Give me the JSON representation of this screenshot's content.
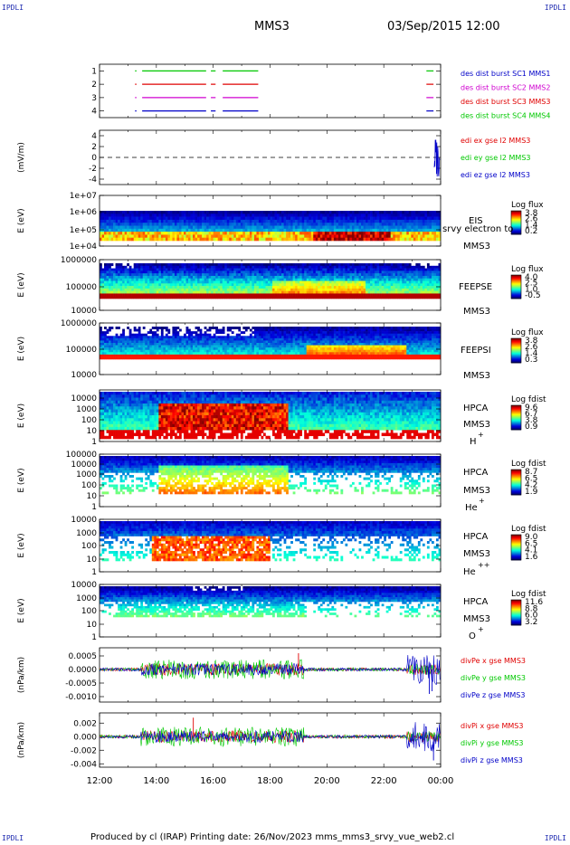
{
  "corner_labels": {
    "top_left": "IPDLI",
    "top_right": "IPDLI",
    "bottom_left": "IPDLI",
    "bottom_right": "IPDLI"
  },
  "header": {
    "spacecraft": "MMS3",
    "date_time": "03/Sep/2015 12:00"
  },
  "footer": {
    "text": "Produced by cl (IRAP)   Printing date: 26/Nov/2023   mms_mms3_srvy_vue_web2.cl"
  },
  "colors": {
    "red": "#e00000",
    "green": "#00c800",
    "blue": "#0000c8",
    "magenta": "#d000d0"
  },
  "x_axis": {
    "ticks": [
      "12:00",
      "14:00",
      "16:00",
      "18:00",
      "20:00",
      "22:00",
      "00:00"
    ]
  },
  "chart_data": [
    {
      "type": "line",
      "title": "",
      "ylabel": "",
      "yticks": [
        "1",
        "2",
        "3",
        "4"
      ],
      "ylim": [
        0.5,
        4.5
      ],
      "series": [
        {
          "name": "des dist burst SC1 MMS1",
          "color": "#0000c8",
          "y": 1,
          "segments": [
            [
              "13:15",
              "13:18"
            ],
            [
              "13:30",
              "15:45"
            ],
            [
              "15:55",
              "16:05"
            ],
            [
              "16:20",
              "17:35"
            ],
            [
              "23:30",
              "23:45"
            ]
          ]
        },
        {
          "name": "des dist burst SC2 MMS2",
          "color": "#d000d0",
          "y": 2,
          "segments": [
            [
              "13:15",
              "13:18"
            ],
            [
              "13:30",
              "15:45"
            ],
            [
              "15:55",
              "16:05"
            ],
            [
              "16:20",
              "17:35"
            ],
            [
              "23:30",
              "23:45"
            ]
          ]
        },
        {
          "name": "des dist burst SC3 MMS3",
          "color": "#e00000",
          "y": 3,
          "segments": [
            [
              "13:15",
              "13:18"
            ],
            [
              "13:30",
              "15:45"
            ],
            [
              "15:55",
              "16:05"
            ],
            [
              "16:20",
              "17:35"
            ],
            [
              "23:30",
              "23:45"
            ]
          ]
        },
        {
          "name": "des dist burst SC4 MMS4",
          "color": "#00c800",
          "y": 4,
          "segments": [
            [
              "13:15",
              "13:18"
            ],
            [
              "13:30",
              "15:45"
            ],
            [
              "15:55",
              "16:05"
            ],
            [
              "16:20",
              "17:35"
            ],
            [
              "23:30",
              "23:45"
            ]
          ]
        }
      ]
    },
    {
      "type": "line",
      "ylabel": "(mV/m)",
      "yticks": [
        "4",
        "2",
        "0",
        "-2",
        "-4"
      ],
      "ylim": [
        -5,
        5
      ],
      "series": [
        {
          "name": "edi ex gse l2 MMS3",
          "color": "#e00000"
        },
        {
          "name": "edi ey gse l2 MMS3",
          "color": "#00c800"
        },
        {
          "name": "edi ez gse l2 MMS3",
          "color": "#0000c8"
        }
      ]
    },
    {
      "type": "heatmap",
      "ylabel": "E (eV)",
      "yticks": [
        "1e+07",
        "1e+06",
        "1e+05",
        "1e+04"
      ],
      "labels": [
        "EIS",
        "srvy electron to",
        "MMS3"
      ],
      "colorbar": {
        "title": "Log flux",
        "ticks": [
          "3.8",
          "2.6",
          "1.4",
          "0.2"
        ]
      }
    },
    {
      "type": "heatmap",
      "ylabel": "E (eV)",
      "yticks": [
        "1000000",
        "100000",
        "10000"
      ],
      "labels": [
        "FEEPSE",
        "MMS3"
      ],
      "colorbar": {
        "title": "Log flux",
        "ticks": [
          "4.0",
          "2.5",
          "1.0",
          "-0.5"
        ]
      }
    },
    {
      "type": "heatmap",
      "ylabel": "E (eV)",
      "yticks": [
        "1000000",
        "100000",
        "10000"
      ],
      "labels": [
        "FEEPSI",
        "MMS3"
      ],
      "colorbar": {
        "title": "Log flux",
        "ticks": [
          "3.8",
          "2.6",
          "1.4",
          "0.3"
        ]
      }
    },
    {
      "type": "heatmap",
      "ylabel": "E (eV)",
      "yticks": [
        "10000",
        "1000",
        "100",
        "10",
        "1"
      ],
      "labels": [
        "HPCA",
        "MMS3",
        "H",
        "+"
      ],
      "colorbar": {
        "title": "Log fdist",
        "ticks": [
          "9.6",
          "6.7",
          "3.8",
          "0.9"
        ]
      }
    },
    {
      "type": "heatmap",
      "ylabel": "E (eV)",
      "yticks": [
        "100000",
        "10000",
        "1000",
        "100",
        "10",
        "1"
      ],
      "labels": [
        "HPCA",
        "MMS3",
        "He",
        "+"
      ],
      "colorbar": {
        "title": "Log fdist",
        "ticks": [
          "8.7",
          "6.5",
          "4.2",
          "1.9"
        ]
      }
    },
    {
      "type": "heatmap",
      "ylabel": "E (eV)",
      "yticks": [
        "10000",
        "1000",
        "100",
        "10",
        "1"
      ],
      "labels": [
        "HPCA",
        "MMS3",
        "He",
        "++"
      ],
      "colorbar": {
        "title": "Log fdist",
        "ticks": [
          "9.0",
          "6.5",
          "4.1",
          "1.6"
        ]
      }
    },
    {
      "type": "heatmap",
      "ylabel": "E (eV)",
      "yticks": [
        "10000",
        "1000",
        "100",
        "10",
        "1"
      ],
      "labels": [
        "HPCA",
        "MMS3",
        "O",
        "+"
      ],
      "colorbar": {
        "title": "Log fdist",
        "ticks": [
          "11.6",
          "8.8",
          "6.0",
          "3.2"
        ]
      }
    },
    {
      "type": "line",
      "ylabel": "(nPa/km)",
      "yticks": [
        "0.0005",
        "0.0000",
        "-0.0005",
        "-0.0010"
      ],
      "ylim": [
        -0.0012,
        0.0008
      ],
      "series": [
        {
          "name": "divPe x gse MMS3",
          "color": "#e00000"
        },
        {
          "name": "divPe y gse MMS3",
          "color": "#00c800"
        },
        {
          "name": "divPe z gse MMS3",
          "color": "#0000c8"
        }
      ]
    },
    {
      "type": "line",
      "ylabel": "(nPa/km)",
      "yticks": [
        "0.002",
        "0.000",
        "-0.002",
        "-0.004"
      ],
      "ylim": [
        -0.0045,
        0.0035
      ],
      "series": [
        {
          "name": "divPi x gse MMS3",
          "color": "#e00000"
        },
        {
          "name": "divPi y gse MMS3",
          "color": "#00c800"
        },
        {
          "name": "divPi z gse MMS3",
          "color": "#0000c8"
        }
      ]
    }
  ]
}
